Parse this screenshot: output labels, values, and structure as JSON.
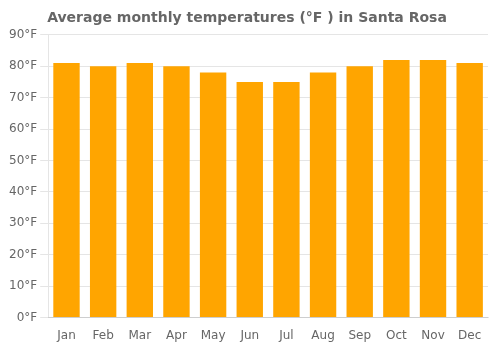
{
  "chart_data": {
    "type": "bar",
    "title": "Average monthly temperatures (°F ) in Santa Rosa",
    "categories": [
      "Jan",
      "Feb",
      "Mar",
      "Apr",
      "May",
      "Jun",
      "Jul",
      "Aug",
      "Sep",
      "Oct",
      "Nov",
      "Dec"
    ],
    "values": [
      81,
      80,
      81,
      80,
      78,
      75,
      75,
      78,
      80,
      82,
      82,
      81
    ],
    "color": "#FFA500",
    "ylim": [
      0,
      90
    ],
    "yticks": [
      {
        "value": 0,
        "label": "0°F"
      },
      {
        "value": 10,
        "label": "10°F"
      },
      {
        "value": 20,
        "label": "20°F"
      },
      {
        "value": 30,
        "label": "30°F"
      },
      {
        "value": 40,
        "label": "40°F"
      },
      {
        "value": 50,
        "label": "50°F"
      },
      {
        "value": 60,
        "label": "60°F"
      },
      {
        "value": 70,
        "label": "70°F"
      },
      {
        "value": 80,
        "label": "80°F"
      },
      {
        "value": 90,
        "label": "90°F"
      }
    ],
    "grid": true
  }
}
